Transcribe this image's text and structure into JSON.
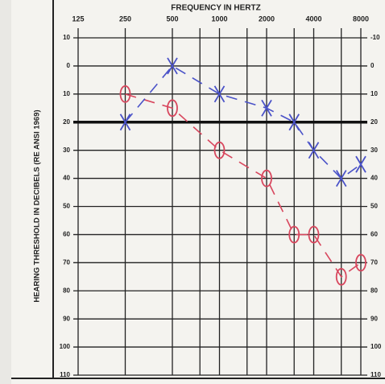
{
  "chart_data": {
    "type": "audiogram",
    "title": "FREQUENCY IN HERTZ",
    "y_label": "HEARING THRESHOLD IN DECIBELS (RE ANSI 1969)",
    "x_scale": "log",
    "xlim": [
      125,
      8000
    ],
    "xticks": [
      125,
      250,
      500,
      1000,
      2000,
      4000,
      8000
    ],
    "minor_xticks": [
      750,
      1500,
      3000,
      6000
    ],
    "ylim": [
      -10,
      110
    ],
    "y_inverted": true,
    "yticks": [
      {
        "value": -10,
        "label": "10"
      },
      0,
      10,
      20,
      30,
      40,
      50,
      60,
      70,
      80,
      90,
      100,
      110
    ],
    "y2lim": [
      -10,
      110
    ],
    "y2ticks": [
      -10,
      0,
      10,
      20,
      30,
      40,
      50,
      60,
      70,
      80,
      90,
      100,
      110
    ],
    "reference_line": 20,
    "grid": true,
    "series": [
      {
        "marker": "o",
        "color": "#d8475e",
        "x": [
          250,
          500,
          1000,
          2000,
          3000,
          4000,
          6000,
          8000
        ],
        "values": [
          10,
          15,
          30,
          40,
          60,
          60,
          75,
          70
        ]
      },
      {
        "marker": "x",
        "color": "#4a52c8",
        "x": [
          250,
          500,
          1000,
          2000,
          3000,
          4000,
          6000,
          8000
        ],
        "values": [
          20,
          0,
          10,
          15,
          20,
          30,
          40,
          35
        ]
      }
    ]
  }
}
